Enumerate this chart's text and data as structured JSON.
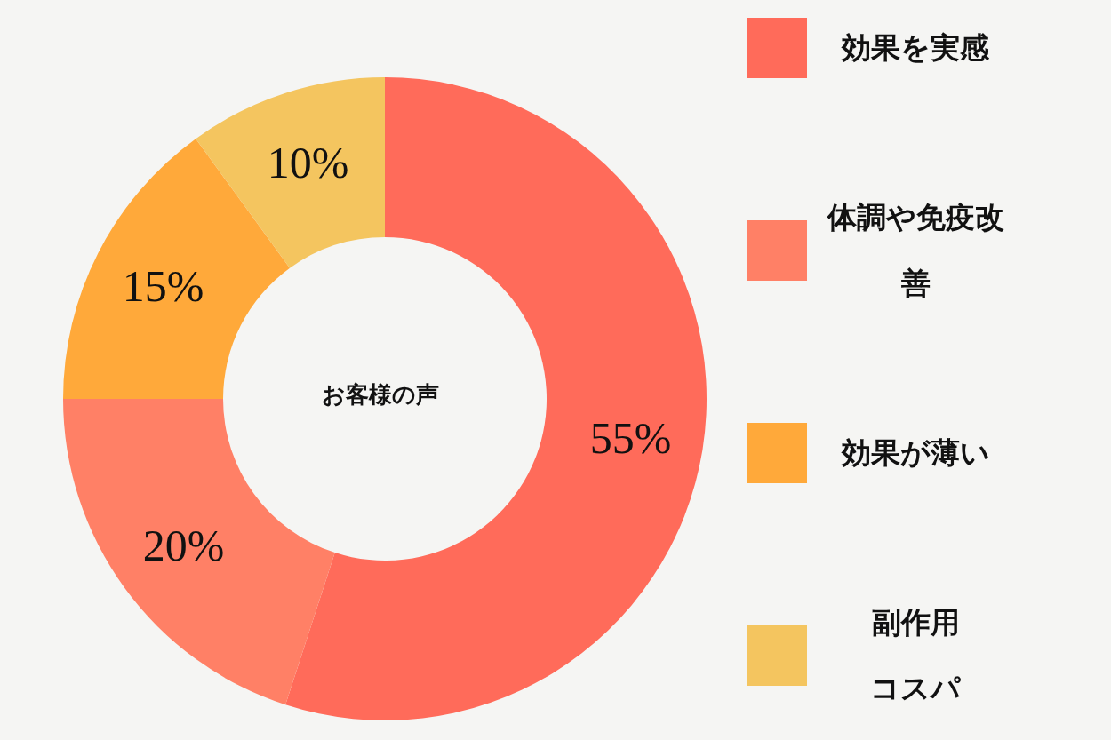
{
  "chart_data": {
    "type": "donut",
    "title": "お客様の声",
    "categories": [
      "効果を実感",
      "体調や免疫改善",
      "効果が薄い",
      "副作用コスパ"
    ],
    "values": [
      55,
      20,
      15,
      10
    ],
    "colors": [
      "#ff6b5a",
      "#ff8066",
      "#ffa93a",
      "#f4c55f"
    ],
    "value_labels": [
      "55%",
      "20%",
      "15%",
      "10%"
    ],
    "legend": "right"
  }
}
